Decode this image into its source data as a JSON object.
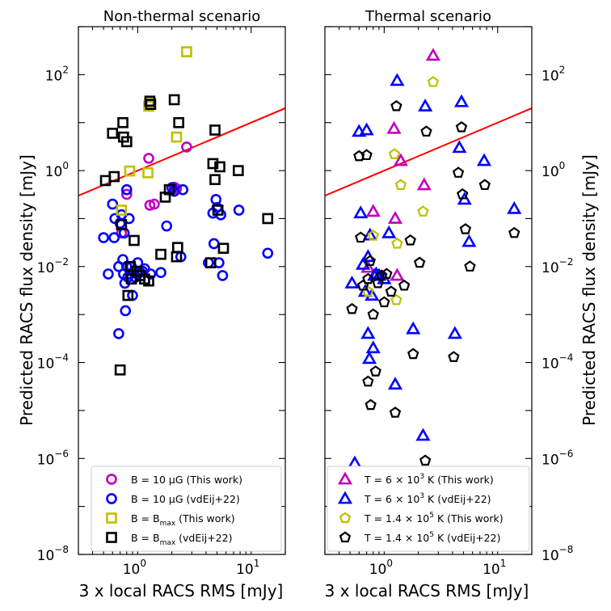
{
  "chart_data": [
    {
      "type": "scatter",
      "title": "Non-thermal scenario",
      "xlabel": "3 x local RACS RMS [mJy]",
      "ylabel": "Predicted RACS flux density [mJy]",
      "xscale": "log",
      "yscale": "log",
      "xlim": [
        0.3,
        20
      ],
      "ylim": [
        1e-08,
        1000
      ],
      "y_ticks": [
        {
          "value": 1e-08,
          "base": "10",
          "exp": "−8"
        },
        {
          "value": 1e-06,
          "base": "10",
          "exp": "−6"
        },
        {
          "value": 0.0001,
          "base": "10",
          "exp": "−4"
        },
        {
          "value": 0.01,
          "base": "10",
          "exp": "−2"
        },
        {
          "value": 1,
          "base": "10",
          "exp": "0"
        },
        {
          "value": 100,
          "base": "10",
          "exp": "2"
        }
      ],
      "x_ticks": [
        {
          "value": 1,
          "base": "10",
          "exp": "0"
        },
        {
          "value": 10,
          "base": "10",
          "exp": "1"
        }
      ],
      "legend_position": "lower-right",
      "line": {
        "name": "1:1 line",
        "color": "#ff0000",
        "x": [
          0.3,
          20
        ],
        "y": [
          0.3,
          20
        ]
      },
      "series": [
        {
          "name": "B = 10 μG (This work)",
          "legend": {
            "main": "B = 10 μG (This work)",
            "sub": ""
          },
          "marker": "circle",
          "color": "#bf00bf",
          "points": [
            [
              0.72,
              0.05
            ],
            [
              0.8,
              0.32
            ],
            [
              1.25,
              1.8
            ],
            [
              1.28,
              0.19
            ],
            [
              1.4,
              0.2
            ],
            [
              2.1,
              0.45
            ],
            [
              2.2,
              0.42
            ],
            [
              2.7,
              3.1
            ]
          ]
        },
        {
          "name": "B = 10 μG (vdEij+22)",
          "legend": {
            "main": "B = 10 μG (vdEij+22)",
            "sub": ""
          },
          "marker": "circle",
          "color": "#0000ff",
          "points": [
            [
              0.5,
              0.04
            ],
            [
              0.55,
              0.007
            ],
            [
              0.6,
              0.2
            ],
            [
              0.62,
              0.04
            ],
            [
              0.63,
              0.1
            ],
            [
              0.68,
              0.0004
            ],
            [
              0.68,
              0.01
            ],
            [
              0.7,
              0.08
            ],
            [
              0.72,
              0.12
            ],
            [
              0.74,
              0.014
            ],
            [
              0.75,
              0.007
            ],
            [
              0.76,
              0.05
            ],
            [
              0.77,
              0.0045
            ],
            [
              0.78,
              0.0012
            ],
            [
              0.8,
              0.4
            ],
            [
              0.8,
              0.01
            ],
            [
              0.82,
              0.006
            ],
            [
              0.84,
              0.1
            ],
            [
              0.86,
              0.007
            ],
            [
              0.88,
              0.01
            ],
            [
              0.9,
              0.0025
            ],
            [
              0.95,
              0.006
            ],
            [
              1.0,
              0.012
            ],
            [
              1.0,
              0.007
            ],
            [
              1.05,
              0.0075
            ],
            [
              1.1,
              0.008
            ],
            [
              1.15,
              0.009
            ],
            [
              1.3,
              0.007
            ],
            [
              1.6,
              0.0075
            ],
            [
              1.8,
              0.07
            ],
            [
              2.0,
              0.44
            ],
            [
              2.1,
              0.37
            ],
            [
              2.4,
              0.016
            ],
            [
              2.5,
              0.4
            ],
            [
              4.2,
              0.012
            ],
            [
              4.6,
              0.13
            ],
            [
              4.7,
              0.03
            ],
            [
              4.9,
              0.25
            ],
            [
              5.0,
              0.17
            ],
            [
              5.2,
              0.012
            ],
            [
              5.4,
              0.12
            ],
            [
              5.6,
              0.0065
            ],
            [
              7.8,
              0.15
            ],
            [
              14.0,
              0.019
            ]
          ]
        },
        {
          "name": "B = Bmax (This work)",
          "legend": {
            "main": "B = B",
            "sub": "max",
            "after": " (This work)"
          },
          "marker": "square",
          "color": "#bfbf00",
          "points": [
            [
              0.72,
              0.15
            ],
            [
              0.85,
              0.98
            ],
            [
              1.23,
              0.9
            ],
            [
              1.25,
              22
            ],
            [
              1.3,
              25
            ],
            [
              2.2,
              5
            ],
            [
              2.7,
              300
            ]
          ]
        },
        {
          "name": "B = Bmax (vdEij+22)",
          "legend": {
            "main": "B = B",
            "sub": "max",
            "after": " (vdEij+22)"
          },
          "marker": "square",
          "color": "#000000",
          "points": [
            [
              0.52,
              0.62
            ],
            [
              0.6,
              6
            ],
            [
              0.62,
              0.75
            ],
            [
              0.7,
              7e-05
            ],
            [
              0.72,
              0.075
            ],
            [
              0.74,
              10
            ],
            [
              0.75,
              5
            ],
            [
              0.8,
              4
            ],
            [
              0.82,
              0.0025
            ],
            [
              0.86,
              0.01
            ],
            [
              0.88,
              0.0055
            ],
            [
              0.93,
              0.035
            ],
            [
              0.98,
              0.008
            ],
            [
              1.05,
              0.0065
            ],
            [
              1.15,
              0.0055
            ],
            [
              1.25,
              0.005
            ],
            [
              1.28,
              28
            ],
            [
              1.3,
              24
            ],
            [
              1.6,
              0.018
            ],
            [
              1.75,
              0.28
            ],
            [
              1.9,
              0.4
            ],
            [
              2.1,
              30
            ],
            [
              2.2,
              0.016
            ],
            [
              2.25,
              0.025
            ],
            [
              2.3,
              10
            ],
            [
              4.4,
              0.012
            ],
            [
              4.6,
              1.4
            ],
            [
              4.8,
              7
            ],
            [
              4.8,
              0.65
            ],
            [
              5.1,
              0.15
            ],
            [
              5.3,
              1.2
            ],
            [
              5.7,
              0.024
            ],
            [
              7.7,
              1.0
            ],
            [
              14.0,
              0.1
            ]
          ]
        }
      ]
    },
    {
      "type": "scatter",
      "title": "Thermal scenario",
      "xlabel": "3 x local RACS RMS [mJy]",
      "ylabel": "Predicted RACS flux density [mJy]",
      "xscale": "log",
      "yscale": "log",
      "xlim": [
        0.3,
        20
      ],
      "ylim": [
        1e-08,
        1000
      ],
      "y_ticks": [
        {
          "value": 1e-08,
          "base": "10",
          "exp": "−8"
        },
        {
          "value": 1e-06,
          "base": "10",
          "exp": "−6"
        },
        {
          "value": 0.0001,
          "base": "10",
          "exp": "−4"
        },
        {
          "value": 0.01,
          "base": "10",
          "exp": "−2"
        },
        {
          "value": 1,
          "base": "10",
          "exp": "0"
        },
        {
          "value": 100,
          "base": "10",
          "exp": "2"
        }
      ],
      "x_ticks": [
        {
          "value": 1,
          "base": "10",
          "exp": "0"
        },
        {
          "value": 10,
          "base": "10",
          "exp": "1"
        }
      ],
      "legend_position": "lower-right",
      "line": {
        "name": "1:1 line",
        "color": "#ff0000",
        "x": [
          0.3,
          20
        ],
        "y": [
          0.3,
          20
        ]
      },
      "series": [
        {
          "name": "T = 6 × 10^3 K (This work)",
          "legend": {
            "main": "T = 6 × 10",
            "sup": "3",
            "after": " K (This work)"
          },
          "marker": "triangle",
          "color": "#bf00bf",
          "points": [
            [
              0.72,
              0.0095
            ],
            [
              0.8,
              0.14
            ],
            [
              1.22,
              7.5
            ],
            [
              1.25,
              0.1
            ],
            [
              1.3,
              0.0065
            ],
            [
              1.4,
              1.6
            ],
            [
              2.25,
              0.5
            ],
            [
              2.7,
              250
            ]
          ]
        },
        {
          "name": "T = 6 × 10^3 K (vdEij+22)",
          "legend": {
            "main": "T = 6 × 10",
            "sup": "3",
            "after": " K (vdEij+22)"
          },
          "marker": "triangle",
          "color": "#0000ff",
          "points": [
            [
              0.52,
              0.0045
            ],
            [
              0.55,
              8e-07
            ],
            [
              0.6,
              6.5
            ],
            [
              0.62,
              0.13
            ],
            [
              0.65,
              0.011
            ],
            [
              0.68,
              0.003
            ],
            [
              0.7,
              7
            ],
            [
              0.72,
              0.016
            ],
            [
              0.72,
              0.0004
            ],
            [
              0.74,
              0.00012
            ],
            [
              0.75,
              0.045
            ],
            [
              0.78,
              0.0025
            ],
            [
              0.8,
              0.0002
            ],
            [
              0.82,
              0.0065
            ],
            [
              0.85,
              0.007
            ],
            [
              0.9,
              0.0065
            ],
            [
              1.0,
              0.0055
            ],
            [
              1.1,
              0.05
            ],
            [
              1.25,
              3.5e-05
            ],
            [
              1.3,
              75
            ],
            [
              1.8,
              0.0005
            ],
            [
              2.2,
              3e-06
            ],
            [
              2.3,
              22
            ],
            [
              4.2,
              0.0004
            ],
            [
              4.6,
              3
            ],
            [
              4.8,
              27
            ],
            [
              5.1,
              0.25
            ],
            [
              5.6,
              0.033
            ],
            [
              7.6,
              1.6
            ],
            [
              14.0,
              0.16
            ]
          ]
        },
        {
          "name": "T = 1.4 × 10^5 K (This work)",
          "legend": {
            "main": "T = 1.4 × 10",
            "sup": "5",
            "after": " K (This work)"
          },
          "marker": "pentagon",
          "color": "#bfbf00",
          "points": [
            [
              0.72,
              0.003
            ],
            [
              0.8,
              0.044
            ],
            [
              1.23,
              2.2
            ],
            [
              1.3,
              0.03
            ],
            [
              1.28,
              0.002
            ],
            [
              1.4,
              0.5
            ],
            [
              2.2,
              0.14
            ],
            [
              2.7,
              70
            ]
          ]
        },
        {
          "name": "T = 1.4 × 10^5 K (vdEij+22)",
          "legend": {
            "main": "T = 1.4 × 10",
            "sup": "5",
            "after": " K (vdEij+22)"
          },
          "marker": "pentagon",
          "color": "#000000",
          "points": [
            [
              0.52,
              0.0013
            ],
            [
              0.55,
              2.5e-07
            ],
            [
              0.6,
              2
            ],
            [
              0.62,
              0.04
            ],
            [
              0.65,
              0.004
            ],
            [
              0.7,
              2.1
            ],
            [
              0.72,
              4e-05
            ],
            [
              0.72,
              0.0055
            ],
            [
              0.75,
              0.013
            ],
            [
              0.76,
              1.3e-05
            ],
            [
              0.8,
              0.001
            ],
            [
              0.84,
              6.5e-05
            ],
            [
              0.88,
              0.0045
            ],
            [
              0.95,
              0.0065
            ],
            [
              1.0,
              0.0018
            ],
            [
              1.05,
              0.007
            ],
            [
              1.15,
              0.003
            ],
            [
              1.25,
              9e-06
            ],
            [
              1.28,
              22
            ],
            [
              1.5,
              0.004
            ],
            [
              1.7,
              0.035
            ],
            [
              1.8,
              0.00015
            ],
            [
              2.05,
              0.012
            ],
            [
              2.3,
              9e-07
            ],
            [
              2.35,
              6.5
            ],
            [
              4.1,
              0.00013
            ],
            [
              4.5,
              0.9
            ],
            [
              4.8,
              8
            ],
            [
              4.9,
              0.32
            ],
            [
              5.2,
              0.06
            ],
            [
              5.7,
              0.01
            ],
            [
              7.7,
              0.5
            ],
            [
              14.0,
              0.05
            ]
          ]
        }
      ]
    }
  ]
}
